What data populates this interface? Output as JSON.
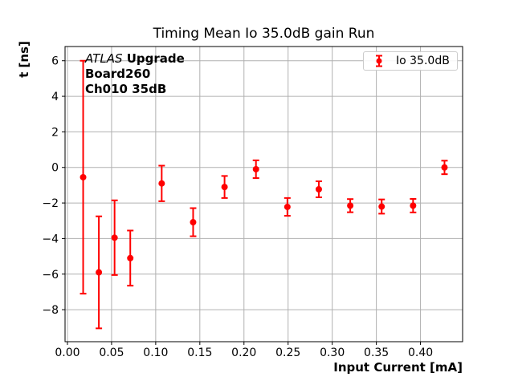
{
  "figure": {
    "background": "#ffffff"
  },
  "chart_data": {
    "type": "scatter",
    "title": "Timing Mean Io 35.0dB gain Run",
    "xlabel": "Input Current [mA]",
    "ylabel": "t [ns]",
    "xlim": [
      -0.0027,
      0.4477
    ],
    "ylim": [
      -9.8,
      6.8
    ],
    "xticks": [
      0.0,
      0.05,
      0.1,
      0.15,
      0.2,
      0.25,
      0.3,
      0.35,
      0.4
    ],
    "xtick_labels": [
      "0.00",
      "0.05",
      "0.10",
      "0.15",
      "0.20",
      "0.25",
      "0.30",
      "0.35",
      "0.40"
    ],
    "yticks": [
      6,
      4,
      2,
      0,
      -2,
      -4,
      -6,
      -8
    ],
    "ytick_labels": [
      "6",
      "4",
      "2",
      "0",
      "−2",
      "−4",
      "−6",
      "−8"
    ],
    "grid": true,
    "legend_position": "upper right",
    "colors": {
      "series": "#ff0000",
      "grid": "#b0b0b0",
      "spine": "#000000",
      "legend_border": "#cccccc"
    },
    "legend": {
      "label": "Io 35.0dB"
    },
    "annotation": {
      "experiment": "ATLAS",
      "experiment_suffix": "Upgrade",
      "line2": "Board260",
      "line3": "Ch010 35dB"
    },
    "series": [
      {
        "name": "Io 35.0dB",
        "color": "#ff0000",
        "x": [
          0.0178,
          0.0356,
          0.0534,
          0.0712,
          0.1068,
          0.1424,
          0.178,
          0.2136,
          0.2492,
          0.2848,
          0.3204,
          0.356,
          0.3916,
          0.4272
        ],
        "y": [
          -0.55,
          -5.9,
          -3.95,
          -5.1,
          -0.9,
          -3.08,
          -1.1,
          -0.1,
          -2.22,
          -1.23,
          -2.15,
          -2.2,
          -2.15,
          0.0
        ],
        "yerr": [
          6.55,
          3.15,
          2.1,
          1.55,
          1.0,
          0.79,
          0.62,
          0.5,
          0.5,
          0.45,
          0.37,
          0.4,
          0.38,
          0.38
        ]
      }
    ]
  }
}
